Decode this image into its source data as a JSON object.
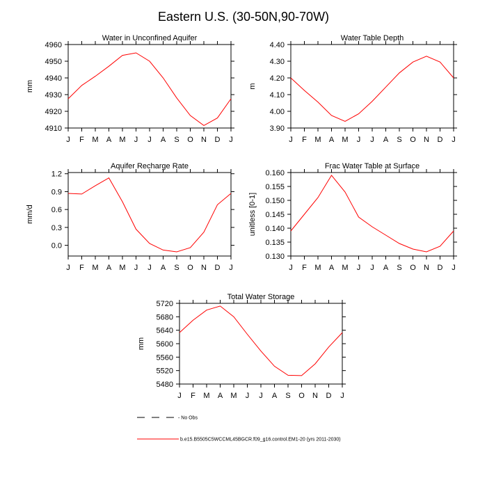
{
  "title": "Eastern U.S. (30-50N,90-70W)",
  "month_ticks": [
    "J",
    "F",
    "M",
    "A",
    "M",
    "J",
    "J",
    "A",
    "S",
    "O",
    "N",
    "D",
    "J"
  ],
  "series_color": "#ff0000",
  "chart_data": [
    {
      "type": "line",
      "title": "Water in Unconfined Aquifer",
      "ylabel": "mm",
      "xlabel": "",
      "x": [
        0,
        1,
        2,
        3,
        4,
        5,
        6,
        7,
        8,
        9,
        10,
        11,
        12
      ],
      "values": [
        4927.5,
        4935.5,
        4941,
        4947,
        4953.5,
        4955,
        4950,
        4940,
        4928,
        4917.5,
        4911.5,
        4916,
        4927.5
      ],
      "ylim": [
        4910,
        4960
      ],
      "yticks": [
        4910,
        4920,
        4930,
        4940,
        4950,
        4960
      ],
      "ytick_labels": [
        "4910",
        "4920",
        "4930",
        "4940",
        "4950",
        "4960"
      ]
    },
    {
      "type": "line",
      "title": "Water Table Depth",
      "ylabel": "m",
      "xlabel": "",
      "x": [
        0,
        1,
        2,
        3,
        4,
        5,
        6,
        7,
        8,
        9,
        10,
        11,
        12
      ],
      "values": [
        4.2,
        4.125,
        4.055,
        3.975,
        3.94,
        3.985,
        4.06,
        4.145,
        4.23,
        4.295,
        4.33,
        4.295,
        4.2
      ],
      "ylim": [
        3.9,
        4.4
      ],
      "yticks": [
        3.9,
        4.0,
        4.1,
        4.2,
        4.3,
        4.4
      ],
      "ytick_labels": [
        "3.90",
        "4.00",
        "4.10",
        "4.20",
        "4.30",
        "4.40"
      ]
    },
    {
      "type": "line",
      "title": "Aquifer Recharge Rate",
      "ylabel": "mm/d",
      "xlabel": "",
      "x": [
        0,
        1,
        2,
        3,
        4,
        5,
        6,
        7,
        8,
        9,
        10,
        11,
        12
      ],
      "values": [
        0.87,
        0.86,
        1.0,
        1.13,
        0.73,
        0.27,
        0.03,
        -0.08,
        -0.11,
        -0.04,
        0.22,
        0.68,
        0.87
      ],
      "ylim": [
        -0.18,
        1.22
      ],
      "yticks": [
        0.0,
        0.3,
        0.6,
        0.9,
        1.2
      ],
      "ytick_labels": [
        "0.0",
        "0.3",
        "0.6",
        "0.9",
        "1.2"
      ]
    },
    {
      "type": "line",
      "title": "Frac Water Table at Surface",
      "ylabel": "unitless [0-1]",
      "xlabel": "",
      "x": [
        0,
        1,
        2,
        3,
        4,
        5,
        6,
        7,
        8,
        9,
        10,
        11,
        12
      ],
      "values": [
        0.139,
        0.145,
        0.151,
        0.159,
        0.153,
        0.144,
        0.1405,
        0.1375,
        0.1345,
        0.1325,
        0.1315,
        0.1335,
        0.139
      ],
      "ylim": [
        0.13,
        0.16
      ],
      "yticks": [
        0.13,
        0.135,
        0.14,
        0.145,
        0.15,
        0.155,
        0.16
      ],
      "ytick_labels": [
        "0.130",
        "0.135",
        "0.140",
        "0.145",
        "0.150",
        "0.155",
        "0.160"
      ]
    },
    {
      "type": "line",
      "title": "Total Water Storage",
      "ylabel": "mm",
      "xlabel": "",
      "x": [
        0,
        1,
        2,
        3,
        4,
        5,
        6,
        7,
        8,
        9,
        10,
        11,
        12
      ],
      "values": [
        5633,
        5670,
        5700,
        5712,
        5680,
        5628,
        5578,
        5533,
        5506,
        5505,
        5540,
        5590,
        5633
      ],
      "ylim": [
        5480,
        5720
      ],
      "yticks": [
        5480,
        5520,
        5560,
        5600,
        5640,
        5680,
        5720
      ],
      "ytick_labels": [
        "5480",
        "5520",
        "5560",
        "5600",
        "5640",
        "5680",
        "5720"
      ]
    }
  ],
  "legend": [
    {
      "label": "- No Obs",
      "style": "dashed",
      "color": "#000000"
    },
    {
      "label": "b.e15.B5505C5WCCML45BGCR.f09_g16.control.EM1-20 (yrs 2011-2030)",
      "style": "solid",
      "color": "#ff0000"
    }
  ]
}
